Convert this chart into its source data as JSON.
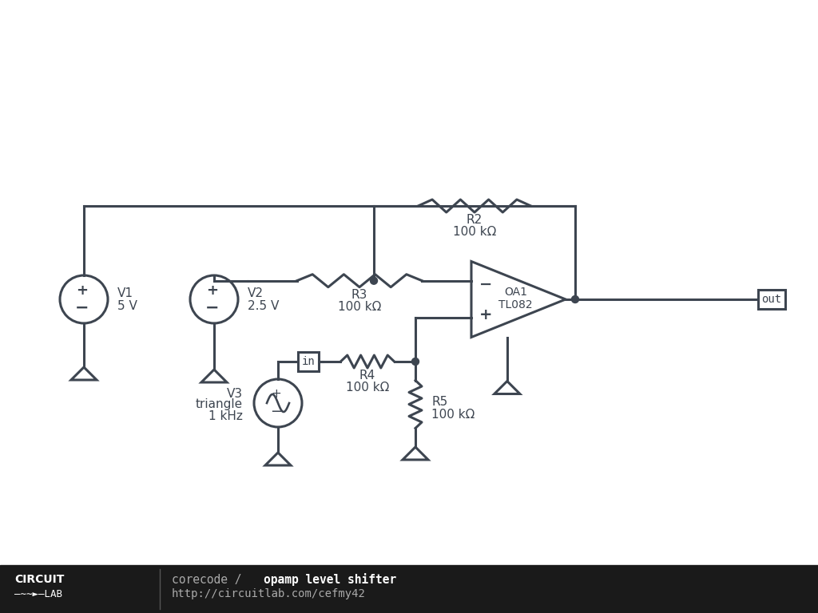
{
  "bg_color": "#ffffff",
  "footer_bg": "#1a1a1a",
  "line_color": "#3d4550",
  "line_width": 2.2,
  "v1_label1": "V1",
  "v1_label2": "5 V",
  "v2_label1": "V2",
  "v2_label2": "2.5 V",
  "v3_label1": "V3",
  "v3_label2": "triangle",
  "v3_label3": "1 kHz",
  "r2_name": "R2",
  "r2_val": "100 kΩ",
  "r3_name": "R3",
  "r3_val": "100 kΩ",
  "r4_name": "R4",
  "r4_val": "100 kΩ",
  "r5_name": "R5",
  "r5_val": "100 kΩ",
  "oa_name": "OA1",
  "oa_type": "TL082",
  "out_label": "out",
  "footer_text_light": "corecode / ",
  "footer_text_bold": "opamp level shifter",
  "footer_url": "http://circuitlab.com/cefmy42",
  "logo_top": "CIRCUIT",
  "logo_bot": "—∼∼►—LAB"
}
